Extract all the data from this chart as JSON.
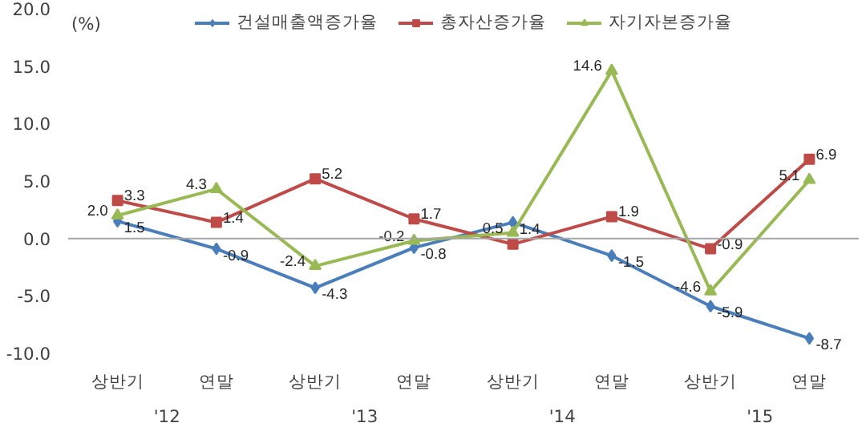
{
  "chart_data": {
    "type": "line",
    "ylabel": "(%)",
    "categories": [
      "상반기",
      "연말",
      "상반기",
      "연말",
      "상반기",
      "연말",
      "상반기",
      "연말"
    ],
    "annotations": [
      "'12",
      "'13",
      "'14",
      "'15"
    ],
    "series": [
      {
        "name": "건설매출액증가율",
        "color": "#4a7ebb",
        "marker": "diamond",
        "values": [
          1.5,
          -0.9,
          -4.3,
          -0.8,
          1.4,
          -1.5,
          -5.9,
          -8.7
        ]
      },
      {
        "name": "총자산증가율",
        "color": "#be4b48",
        "marker": "square",
        "values": [
          3.3,
          1.4,
          5.2,
          1.7,
          -0.5,
          1.9,
          -0.9,
          6.9
        ],
        "value_labels": [
          "3.3",
          "1.4",
          "5.2",
          "1.7",
          null,
          "1.9",
          "-0.9",
          "6.9"
        ]
      },
      {
        "name": "자기자본증가율",
        "color": "#98b954",
        "marker": "triangle",
        "values": [
          2.0,
          4.3,
          -2.4,
          -0.2,
          0.5,
          14.6,
          -4.6,
          5.1
        ],
        "value_labels": [
          "2.0",
          "4.3",
          "-2.4",
          "-0.2",
          "0.5",
          "14.6",
          "-4.6",
          "5.1"
        ]
      }
    ],
    "ylim": [
      -10,
      20
    ],
    "yticks": [
      {
        "value": -10,
        "label": "-10.0"
      },
      {
        "value": -5,
        "label": "-5.0"
      },
      {
        "value": 0,
        "label": "0.0"
      },
      {
        "value": 5,
        "label": "5.0"
      },
      {
        "value": 10,
        "label": "10.0"
      },
      {
        "value": 15,
        "label": "15.0"
      },
      {
        "value": 20,
        "label": "20.0"
      }
    ],
    "ref_lines": [
      {
        "axis": "y",
        "value": 0,
        "color": "#a6a6a6"
      }
    ],
    "data_labels": true,
    "legend": "top",
    "grid": false,
    "line_style": "solid"
  }
}
